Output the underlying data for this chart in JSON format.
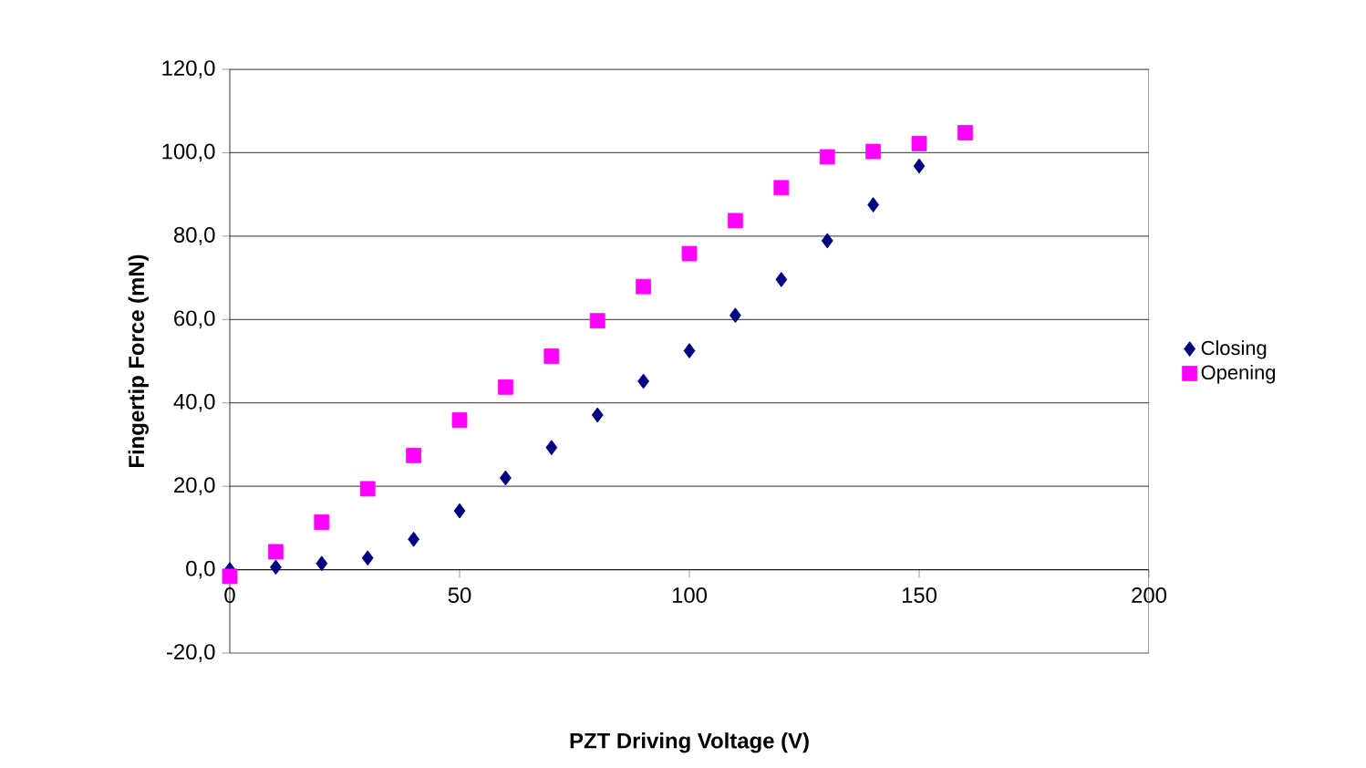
{
  "chart_data": {
    "type": "scatter",
    "xlabel": "PZT Driving Voltage (V)",
    "ylabel": "Fingertip Force (mN)",
    "xlim": [
      0,
      200
    ],
    "xticks": [
      0,
      50,
      100,
      150,
      200
    ],
    "ylim": [
      -20,
      120
    ],
    "yticks": [
      {
        "value": -20,
        "label": "-20,0"
      },
      {
        "value": 0,
        "label": "0,0"
      },
      {
        "value": 20,
        "label": "20,0"
      },
      {
        "value": 40,
        "label": "40,0"
      },
      {
        "value": 60,
        "label": "60,0"
      },
      {
        "value": 80,
        "label": "80,0"
      },
      {
        "value": 100,
        "label": "100,0"
      },
      {
        "value": 120,
        "label": "120,0"
      }
    ],
    "grid": "y",
    "legend": "right",
    "series": [
      {
        "name": "Closing",
        "color": "#000080",
        "marker": "diamond",
        "x": [
          0,
          10,
          20,
          30,
          40,
          50,
          60,
          70,
          80,
          90,
          100,
          110,
          120,
          130,
          140,
          150
        ],
        "values": [
          0,
          0.6,
          1.5,
          2.8,
          7.3,
          14.1,
          22.0,
          29.3,
          37.1,
          45.2,
          52.5,
          61.0,
          69.6,
          78.9,
          87.5,
          96.8
        ]
      },
      {
        "name": "Opening",
        "color": "#ff00ff",
        "marker": "square",
        "x": [
          0,
          10,
          20,
          30,
          40,
          50,
          60,
          70,
          80,
          90,
          100,
          110,
          120,
          130,
          140,
          150,
          160
        ],
        "values": [
          -1.6,
          4.3,
          11.4,
          19.4,
          27.4,
          35.9,
          43.8,
          51.2,
          59.7,
          67.9,
          75.8,
          83.7,
          91.6,
          99.0,
          100.3,
          102.2,
          104.8
        ]
      }
    ]
  }
}
